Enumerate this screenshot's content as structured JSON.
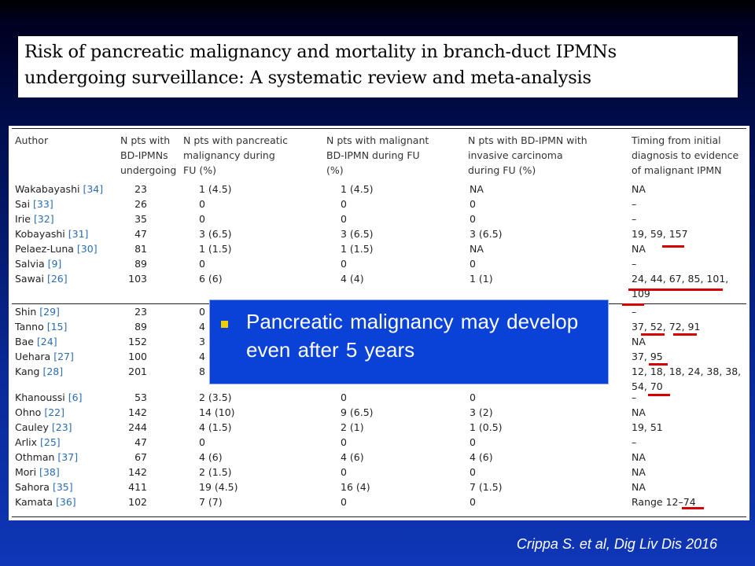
{
  "title": {
    "line1": "Risk of pancreatic malignancy and mortality in branch-duct IPMNs",
    "line2": "undergoing surveillance: A systematic review and meta-analysis"
  },
  "table": {
    "headers": [
      [
        "Author"
      ],
      [
        "N pts with",
        "BD-IPMNs",
        "undergoing"
      ],
      [
        "N pts with pancreatic",
        "malignancy during",
        "FU (%)"
      ],
      [
        "N pts with malignant",
        "BD-IPMN during FU",
        "(%)"
      ],
      [
        "N pts with BD-IPMN with",
        "invasive carcinoma",
        "during FU (%)"
      ],
      [
        "Timing from initial",
        "diagnosis to evidence",
        "of malignant IPMN"
      ]
    ],
    "rows": [
      {
        "author": "Wakabayashi ",
        "ref": "[34]",
        "n": "23",
        "malig": "1 (4.5)",
        "bd": "1 (4.5)",
        "inv": "NA",
        "timing": [
          "NA"
        ]
      },
      {
        "author": "Sai ",
        "ref": "[33]",
        "n": "26",
        "malig": "0",
        "bd": "0",
        "inv": "0",
        "timing": [
          "–"
        ]
      },
      {
        "author": "Irie ",
        "ref": "[32]",
        "n": "35",
        "malig": "0",
        "bd": "0",
        "inv": "0",
        "timing": [
          "–"
        ]
      },
      {
        "author": "Kobayashi ",
        "ref": "[31]",
        "n": "47",
        "malig": "3 (6.5)",
        "bd": "3 (6.5)",
        "inv": "3 (6.5)",
        "timing": [
          "19, 59, 157"
        ]
      },
      {
        "author": "Pelaez-Luna ",
        "ref": "[30]",
        "n": "81",
        "malig": "1 (1.5)",
        "bd": "1 (1.5)",
        "inv": "NA",
        "timing": [
          "NA"
        ]
      },
      {
        "author": "Salvia ",
        "ref": "[9]",
        "n": "89",
        "malig": "0",
        "bd": "0",
        "inv": "0",
        "timing": [
          "–"
        ]
      },
      {
        "author": "Sawai ",
        "ref": "[26]",
        "n": "103",
        "malig": "6 (6)",
        "bd": "4 (4)",
        "inv": "1 (1)",
        "timing": [
          "24, 44, 67, 85, 101,",
          "109"
        ]
      },
      {
        "author": "Shin ",
        "ref": "[29]",
        "n": "23",
        "malig": "0",
        "bd": "",
        "inv": "",
        "timing": [
          "–"
        ]
      },
      {
        "author": "Tanno ",
        "ref": "[15]",
        "n": "89",
        "malig": "4 (4",
        "bd": "",
        "inv": "",
        "timing": [
          "37, 52, 72, 91"
        ]
      },
      {
        "author": "Bae ",
        "ref": "[24]",
        "n": "152",
        "malig": "3 (2",
        "bd": "",
        "inv": "",
        "timing": [
          "NA"
        ]
      },
      {
        "author": "Uehara ",
        "ref": "[27]",
        "n": "100",
        "malig": "4 (4",
        "bd": "",
        "inv": "",
        "timing": [
          "37, 95"
        ]
      },
      {
        "author": "Kang ",
        "ref": "[28]",
        "n": "201",
        "malig": "8 (4",
        "bd": "",
        "inv": "",
        "timing": [
          "12, 18, 18, 24, 38, 38,",
          "54, 70"
        ]
      },
      {
        "author": "Khanoussi ",
        "ref": "[6]",
        "n": "53",
        "malig": "2 (3.5)",
        "bd": "0",
        "inv": "0",
        "timing": [
          "–"
        ]
      },
      {
        "author": "Ohno ",
        "ref": "[22]",
        "n": "142",
        "malig": "14 (10)",
        "bd": "9 (6.5)",
        "inv": "3 (2)",
        "timing": [
          "NA"
        ]
      },
      {
        "author": "Cauley ",
        "ref": "[23]",
        "n": "244",
        "malig": "4 (1.5)",
        "bd": "2 (1)",
        "inv": "1 (0.5)",
        "timing": [
          "19, 51"
        ]
      },
      {
        "author": "Arlix ",
        "ref": "[25]",
        "n": "47",
        "malig": "0",
        "bd": "0",
        "inv": "0",
        "timing": [
          "–"
        ]
      },
      {
        "author": "Othman ",
        "ref": "[37]",
        "n": "67",
        "malig": "4 (6)",
        "bd": "4 (6)",
        "inv": "4 (6)",
        "timing": [
          "NA"
        ]
      },
      {
        "author": "Mori ",
        "ref": "[38]",
        "n": "142",
        "malig": "2 (1.5)",
        "bd": "0",
        "inv": "0",
        "timing": [
          "NA"
        ]
      },
      {
        "author": "Sahora ",
        "ref": "[35]",
        "n": "411",
        "malig": "19 (4.5)",
        "bd": "16 (4)",
        "inv": "7 (1.5)",
        "timing": [
          "NA"
        ]
      },
      {
        "author": "Kamata ",
        "ref": "[36]",
        "n": "102",
        "malig": "7 (7)",
        "bd": "0",
        "inv": "0",
        "timing": [
          "Range 12–74"
        ]
      }
    ]
  },
  "callout": {
    "text": "Pancreatic malignancy may develop even after 5 years"
  },
  "citation": "Crippa S. et al, Dig Liv Dis 2016",
  "colors": {
    "background_top": "#000000",
    "background_bottom": "#0e36b6",
    "callout_fill": "#0a41d6",
    "bullet": "#f0d000",
    "reference_link": "#2a6db0",
    "underline": "#d60000"
  }
}
